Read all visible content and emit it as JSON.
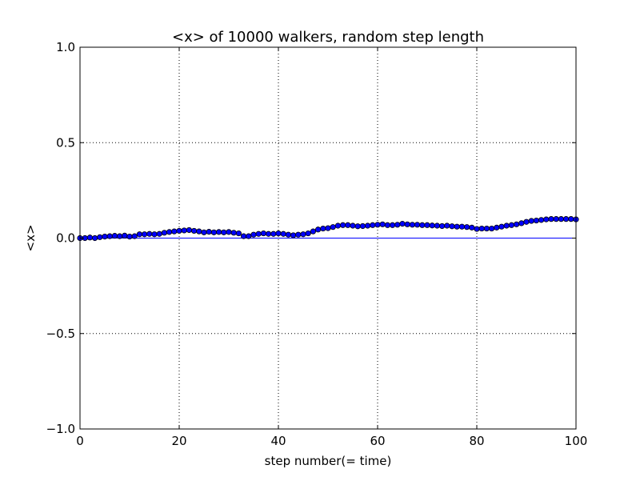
{
  "chart_data": {
    "type": "scatter",
    "title": "<x> of 10000 walkers, random step length",
    "xlabel": "step number(= time)",
    "ylabel": "<x>",
    "xlim": [
      0,
      100
    ],
    "ylim": [
      -1.0,
      1.0
    ],
    "x_ticks": [
      "0",
      "20",
      "40",
      "60",
      "80",
      "100"
    ],
    "y_ticks": [
      "−1.0",
      "−0.5",
      "0.0",
      "0.5",
      "1.0"
    ],
    "grid": true,
    "reference_line": {
      "y": 0.0,
      "color": "#0000ff"
    },
    "marker_color": "#0000ff",
    "series": [
      {
        "x": [
          0,
          1,
          2,
          3,
          4,
          5,
          6,
          7,
          8,
          9,
          10,
          11,
          12,
          13,
          14,
          15,
          16,
          17,
          18,
          19,
          20,
          21,
          22,
          23,
          24,
          25,
          26,
          27,
          28,
          29,
          30,
          31,
          32,
          33,
          34,
          35,
          36,
          37,
          38,
          39,
          40,
          41,
          42,
          43,
          44,
          45,
          46,
          47,
          48,
          49,
          50,
          51,
          52,
          53,
          54,
          55,
          56,
          57,
          58,
          59,
          60,
          61,
          62,
          63,
          64,
          65,
          66,
          67,
          68,
          69,
          70,
          71,
          72,
          73,
          74,
          75,
          76,
          77,
          78,
          79,
          80,
          81,
          82,
          83,
          84,
          85,
          86,
          87,
          88,
          89,
          90,
          91,
          92,
          93,
          94,
          95,
          96,
          97,
          98,
          99,
          100
        ],
        "y": [
          0.0,
          0.0,
          0.003,
          0.0,
          0.005,
          0.008,
          0.01,
          0.012,
          0.01,
          0.013,
          0.008,
          0.01,
          0.02,
          0.02,
          0.022,
          0.02,
          0.022,
          0.028,
          0.032,
          0.035,
          0.038,
          0.04,
          0.042,
          0.038,
          0.035,
          0.03,
          0.033,
          0.03,
          0.032,
          0.03,
          0.032,
          0.028,
          0.025,
          0.01,
          0.01,
          0.018,
          0.022,
          0.025,
          0.022,
          0.022,
          0.025,
          0.022,
          0.018,
          0.015,
          0.018,
          0.02,
          0.025,
          0.035,
          0.045,
          0.05,
          0.052,
          0.058,
          0.065,
          0.068,
          0.068,
          0.065,
          0.062,
          0.063,
          0.065,
          0.068,
          0.07,
          0.072,
          0.068,
          0.068,
          0.07,
          0.075,
          0.072,
          0.07,
          0.07,
          0.068,
          0.068,
          0.066,
          0.065,
          0.063,
          0.065,
          0.062,
          0.06,
          0.06,
          0.058,
          0.055,
          0.048,
          0.05,
          0.05,
          0.05,
          0.055,
          0.06,
          0.065,
          0.068,
          0.072,
          0.078,
          0.085,
          0.09,
          0.092,
          0.095,
          0.098,
          0.1,
          0.1,
          0.1,
          0.1,
          0.1,
          0.098
        ]
      }
    ]
  }
}
